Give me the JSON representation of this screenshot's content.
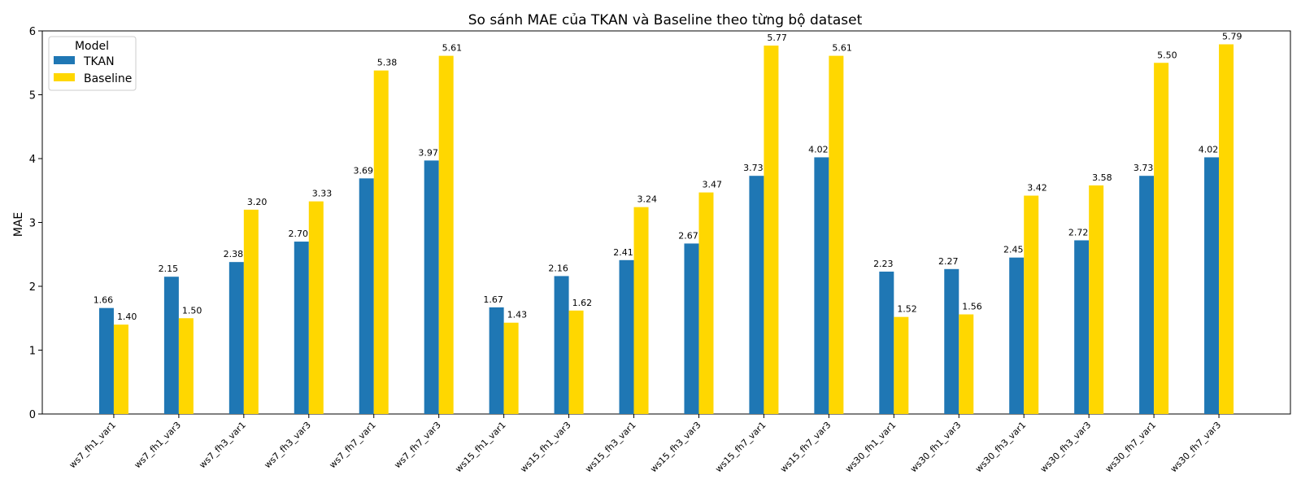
{
  "chart_data": {
    "type": "bar",
    "title": "So sánh MAE của TKAN và Baseline theo từng bộ dataset",
    "xlabel": "",
    "ylabel": "MAE",
    "ylim": [
      0,
      6
    ],
    "yticks": [
      0,
      1,
      2,
      3,
      4,
      5,
      6
    ],
    "grid": false,
    "legend": {
      "title": "Model",
      "position": "top-left"
    },
    "categories": [
      "ws7_fh1_var1",
      "ws7_fh1_var3",
      "ws7_fh3_var1",
      "ws7_fh3_var3",
      "ws7_fh7_var1",
      "ws7_fh7_var3",
      "ws15_fh1_var1",
      "ws15_fh1_var3",
      "ws15_fh3_var1",
      "ws15_fh3_var3",
      "ws15_fh7_var1",
      "ws15_fh7_var3",
      "ws30_fh1_var1",
      "ws30_fh1_var3",
      "ws30_fh3_var1",
      "ws30_fh3_var3",
      "ws30_fh7_var1",
      "ws30_fh7_var3"
    ],
    "series": [
      {
        "name": "TKAN",
        "color": "#1f77b4",
        "values": [
          1.66,
          2.15,
          2.38,
          2.7,
          3.69,
          3.97,
          1.67,
          2.16,
          2.41,
          2.67,
          3.73,
          4.02,
          2.23,
          2.27,
          2.45,
          2.72,
          3.73,
          4.02
        ]
      },
      {
        "name": "Baseline",
        "color": "#ffd700",
        "values": [
          1.4,
          1.5,
          3.2,
          3.33,
          5.38,
          5.61,
          1.43,
          1.62,
          3.24,
          3.47,
          5.77,
          5.61,
          1.52,
          1.56,
          3.42,
          3.58,
          5.5,
          5.79
        ]
      }
    ]
  }
}
